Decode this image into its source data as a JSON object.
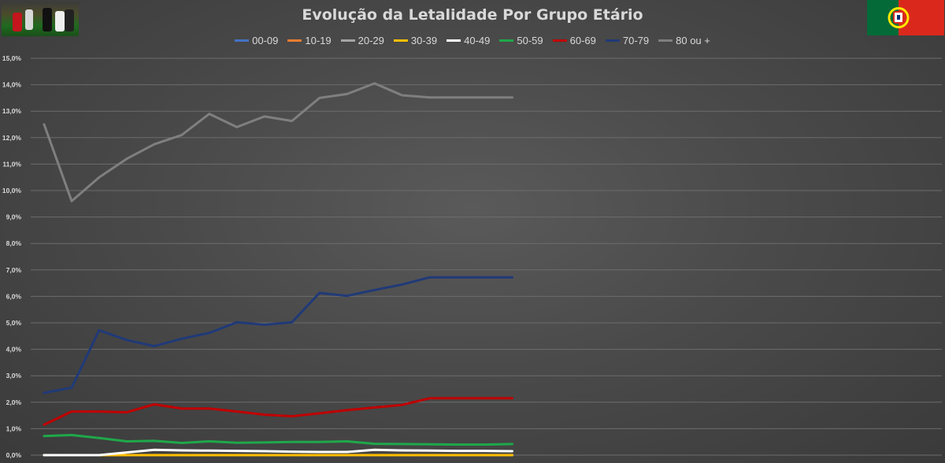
{
  "chart_data": {
    "type": "line",
    "title": "Evolução da Letalidade Por Grupo Etário",
    "xlabel": "",
    "ylabel": "",
    "ylim": [
      0,
      15
    ],
    "yticks": [
      "0,0%",
      "1,0%",
      "2,0%",
      "3,0%",
      "4,0%",
      "5,0%",
      "6,0%",
      "7,0%",
      "8,0%",
      "9,0%",
      "10,0%",
      "11,0%",
      "12,0%",
      "13,0%",
      "14,0%",
      "15,0%"
    ],
    "x": [
      1,
      2,
      3,
      4,
      5,
      6,
      7,
      8,
      9,
      10,
      11,
      12,
      13,
      14,
      15,
      16,
      17,
      18
    ],
    "xlim": [
      1,
      33
    ],
    "grid": true,
    "legend_position": "top",
    "series": [
      {
        "name": "00-09",
        "color": "#4472c4",
        "values": [
          0,
          0,
          0,
          0,
          0,
          0,
          0,
          0,
          0,
          0,
          0,
          0,
          0,
          0,
          0,
          0,
          0,
          0
        ]
      },
      {
        "name": "10-19",
        "color": "#ed7d31",
        "values": [
          0,
          0,
          0,
          0,
          0,
          0,
          0,
          0,
          0,
          0,
          0,
          0,
          0,
          0,
          0,
          0,
          0,
          0
        ]
      },
      {
        "name": "20-29",
        "color": "#a5a5a5",
        "values": [
          0,
          0,
          0,
          0,
          0,
          0,
          0,
          0,
          0,
          0,
          0,
          0,
          0,
          0,
          0,
          0,
          0,
          0
        ]
      },
      {
        "name": "30-39",
        "color": "#ffc000",
        "values": [
          0,
          0,
          0,
          0,
          0,
          0,
          0,
          0,
          0,
          0,
          0,
          0,
          0,
          0,
          0,
          0,
          0,
          0
        ]
      },
      {
        "name": "40-49",
        "color": "#ffffff",
        "values": [
          0,
          0,
          0,
          0.1,
          0.2,
          0.18,
          0.17,
          0.16,
          0.15,
          0.13,
          0.12,
          0.12,
          0.2,
          0.18,
          0.17,
          0.16,
          0.16,
          0.15
        ]
      },
      {
        "name": "50-59",
        "color": "#1fa84a",
        "values": [
          0.72,
          0.76,
          0.65,
          0.52,
          0.54,
          0.46,
          0.52,
          0.47,
          0.48,
          0.5,
          0.5,
          0.52,
          0.43,
          0.42,
          0.41,
          0.4,
          0.4,
          0.42
        ]
      },
      {
        "name": "60-69",
        "color": "#c00000",
        "values": [
          1.15,
          1.65,
          1.65,
          1.62,
          1.92,
          1.76,
          1.76,
          1.65,
          1.53,
          1.47,
          1.58,
          1.7,
          1.8,
          1.9,
          2.15,
          2.15,
          2.15,
          2.15
        ]
      },
      {
        "name": "70-79",
        "color": "#203a78",
        "values": [
          2.35,
          2.55,
          4.72,
          4.35,
          4.12,
          4.4,
          4.62,
          5.02,
          4.93,
          5.02,
          6.13,
          6.02,
          6.24,
          6.45,
          6.72,
          6.72,
          6.72,
          6.72
        ]
      },
      {
        "name": "80 ou +",
        "color": "#7f7f7f",
        "values": [
          12.5,
          9.6,
          10.5,
          11.2,
          11.75,
          12.1,
          12.9,
          12.4,
          12.8,
          12.63,
          13.5,
          13.65,
          14.05,
          13.6,
          13.52,
          13.52,
          13.52,
          13.52
        ]
      }
    ]
  }
}
